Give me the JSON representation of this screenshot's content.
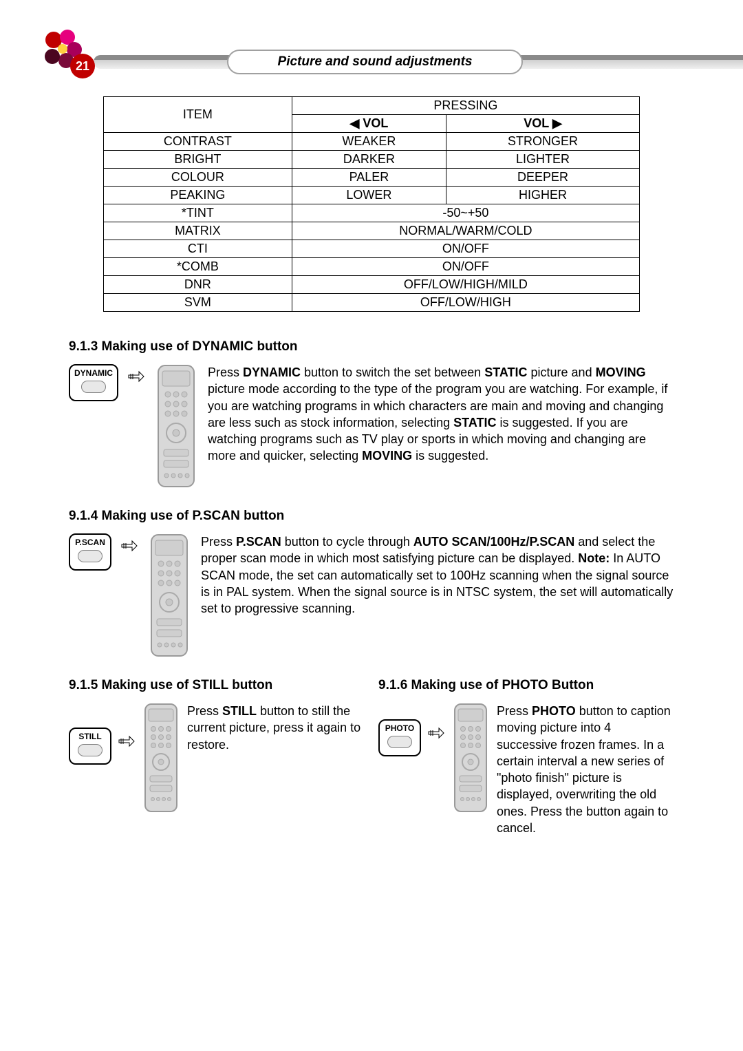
{
  "page_number": "21",
  "title": "Picture and sound adjustments",
  "colors": {
    "badge_bg": "#c00000",
    "badge_fg": "#ffffff",
    "pill_border": "#a0a0a0",
    "line_dark": "#8a8a8a",
    "line_light": "#f0f0f0",
    "remote_body": "#d8d8d8",
    "remote_shadow": "#9a9a9a",
    "button_fill": "#e8e8e8"
  },
  "table": {
    "header_item": "ITEM",
    "header_pressing": "PRESSING",
    "header_vol_left": "◀ VOL",
    "header_vol_right": "VOL ▶",
    "rows": [
      {
        "item": "CONTRAST",
        "left": "WEAKER",
        "right": "STRONGER",
        "span": false
      },
      {
        "item": "BRIGHT",
        "left": "DARKER",
        "right": "LIGHTER",
        "span": false
      },
      {
        "item": "COLOUR",
        "left": "PALER",
        "right": "DEEPER",
        "span": false
      },
      {
        "item": "PEAKING",
        "left": "LOWER",
        "right": "HIGHER",
        "span": false
      },
      {
        "item": "*TINT",
        "span": true,
        "value": "-50~+50"
      },
      {
        "item": "MATRIX",
        "span": true,
        "value": "NORMAL/WARM/COLD"
      },
      {
        "item": "CTI",
        "span": true,
        "value": "ON/OFF"
      },
      {
        "item": "*COMB",
        "span": true,
        "value": "ON/OFF"
      },
      {
        "item": "DNR",
        "span": true,
        "value": "OFF/LOW/HIGH/MILD"
      },
      {
        "item": "SVM",
        "span": true,
        "value": "OFF/LOW/HIGH"
      }
    ]
  },
  "sections": {
    "dynamic": {
      "heading": "9.1.3 Making use of DYNAMIC button",
      "button_label": "DYNAMIC",
      "text_pre1": "Press ",
      "b1": "DYNAMIC",
      "text_mid1": " button to switch the set between ",
      "b2": "STATIC",
      "text_mid2": " picture and ",
      "b3": "MOVING",
      "text_mid3": " picture mode according to the type of the program you are watching. For example, if you are watching programs in which characters are main and moving and changing are less such as stock information, selecting ",
      "b4": "STATIC",
      "text_mid4": " is suggested. If you are watching programs such as TV play or sports in which moving and changing are more and quicker, selecting ",
      "b5": "MOVING",
      "text_end": " is suggested."
    },
    "pscan": {
      "heading": "9.1.4 Making use of P.SCAN button",
      "button_label": "P.SCAN",
      "text_pre1": "Press ",
      "b1": "P.SCAN",
      "text_mid1": " button to cycle through ",
      "b2": "AUTO SCAN/100Hz/P.SCAN",
      "text_mid2": " and select the proper scan mode in which most satisfying picture can be displayed. ",
      "b3": "Note:",
      "text_end": " In AUTO SCAN mode, the set can automatically set to 100Hz scanning when the signal source is in PAL system. When the signal source is in NTSC system, the set will automatically set to progressive scanning."
    },
    "still": {
      "heading": "9.1.5 Making use of STILL button",
      "button_label": "STILL",
      "text_pre1": "Press ",
      "b1": "STILL",
      "text_end": " button to still the current picture, press it again to restore."
    },
    "photo": {
      "heading": "9.1.6 Making use of PHOTO Button",
      "button_label": "PHOTO",
      "text_pre1": "Press ",
      "b1": "PHOTO",
      "text_end": " button to caption moving picture into 4 successive frozen frames. In a certain interval a new series of \"photo finish\" picture is displayed, overwriting the old ones. Press the button again to cancel."
    }
  }
}
